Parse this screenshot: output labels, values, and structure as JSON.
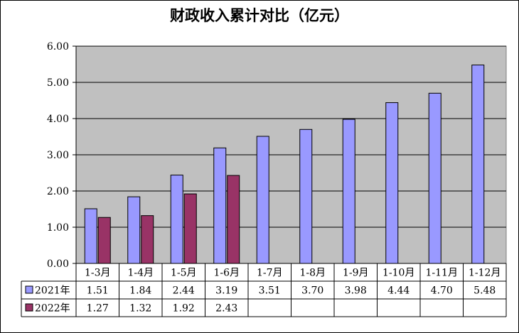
{
  "chart_data": {
    "type": "bar",
    "title": "财政收入累计对比（亿元）",
    "categories": [
      "1-3月",
      "1-4月",
      "1-5月",
      "1-6月",
      "1-7月",
      "1-8月",
      "1-9月",
      "1-10月",
      "1-11月",
      "1-12月"
    ],
    "series": [
      {
        "name": "2021年",
        "color": "#9999FF",
        "values": [
          1.51,
          1.84,
          2.44,
          3.19,
          3.51,
          3.7,
          3.98,
          4.44,
          4.7,
          5.48
        ],
        "labels": [
          "1.51",
          "1.84",
          "2.44",
          "3.19",
          "3.51",
          "3.70",
          "3.98",
          "4.44",
          "4.70",
          "5.48"
        ]
      },
      {
        "name": "2022年",
        "color": "#993366",
        "values": [
          1.27,
          1.32,
          1.92,
          2.43,
          null,
          null,
          null,
          null,
          null,
          null
        ],
        "labels": [
          "1.27",
          "1.32",
          "1.92",
          "2.43",
          "",
          "",
          "",
          "",
          "",
          ""
        ]
      }
    ],
    "y_ticks": [
      "0.00",
      "1.00",
      "2.00",
      "3.00",
      "4.00",
      "5.00",
      "6.00"
    ],
    "ylim": [
      0,
      6
    ],
    "grid": true,
    "plot_background": "#C0C0C0",
    "legend": "data-table"
  }
}
